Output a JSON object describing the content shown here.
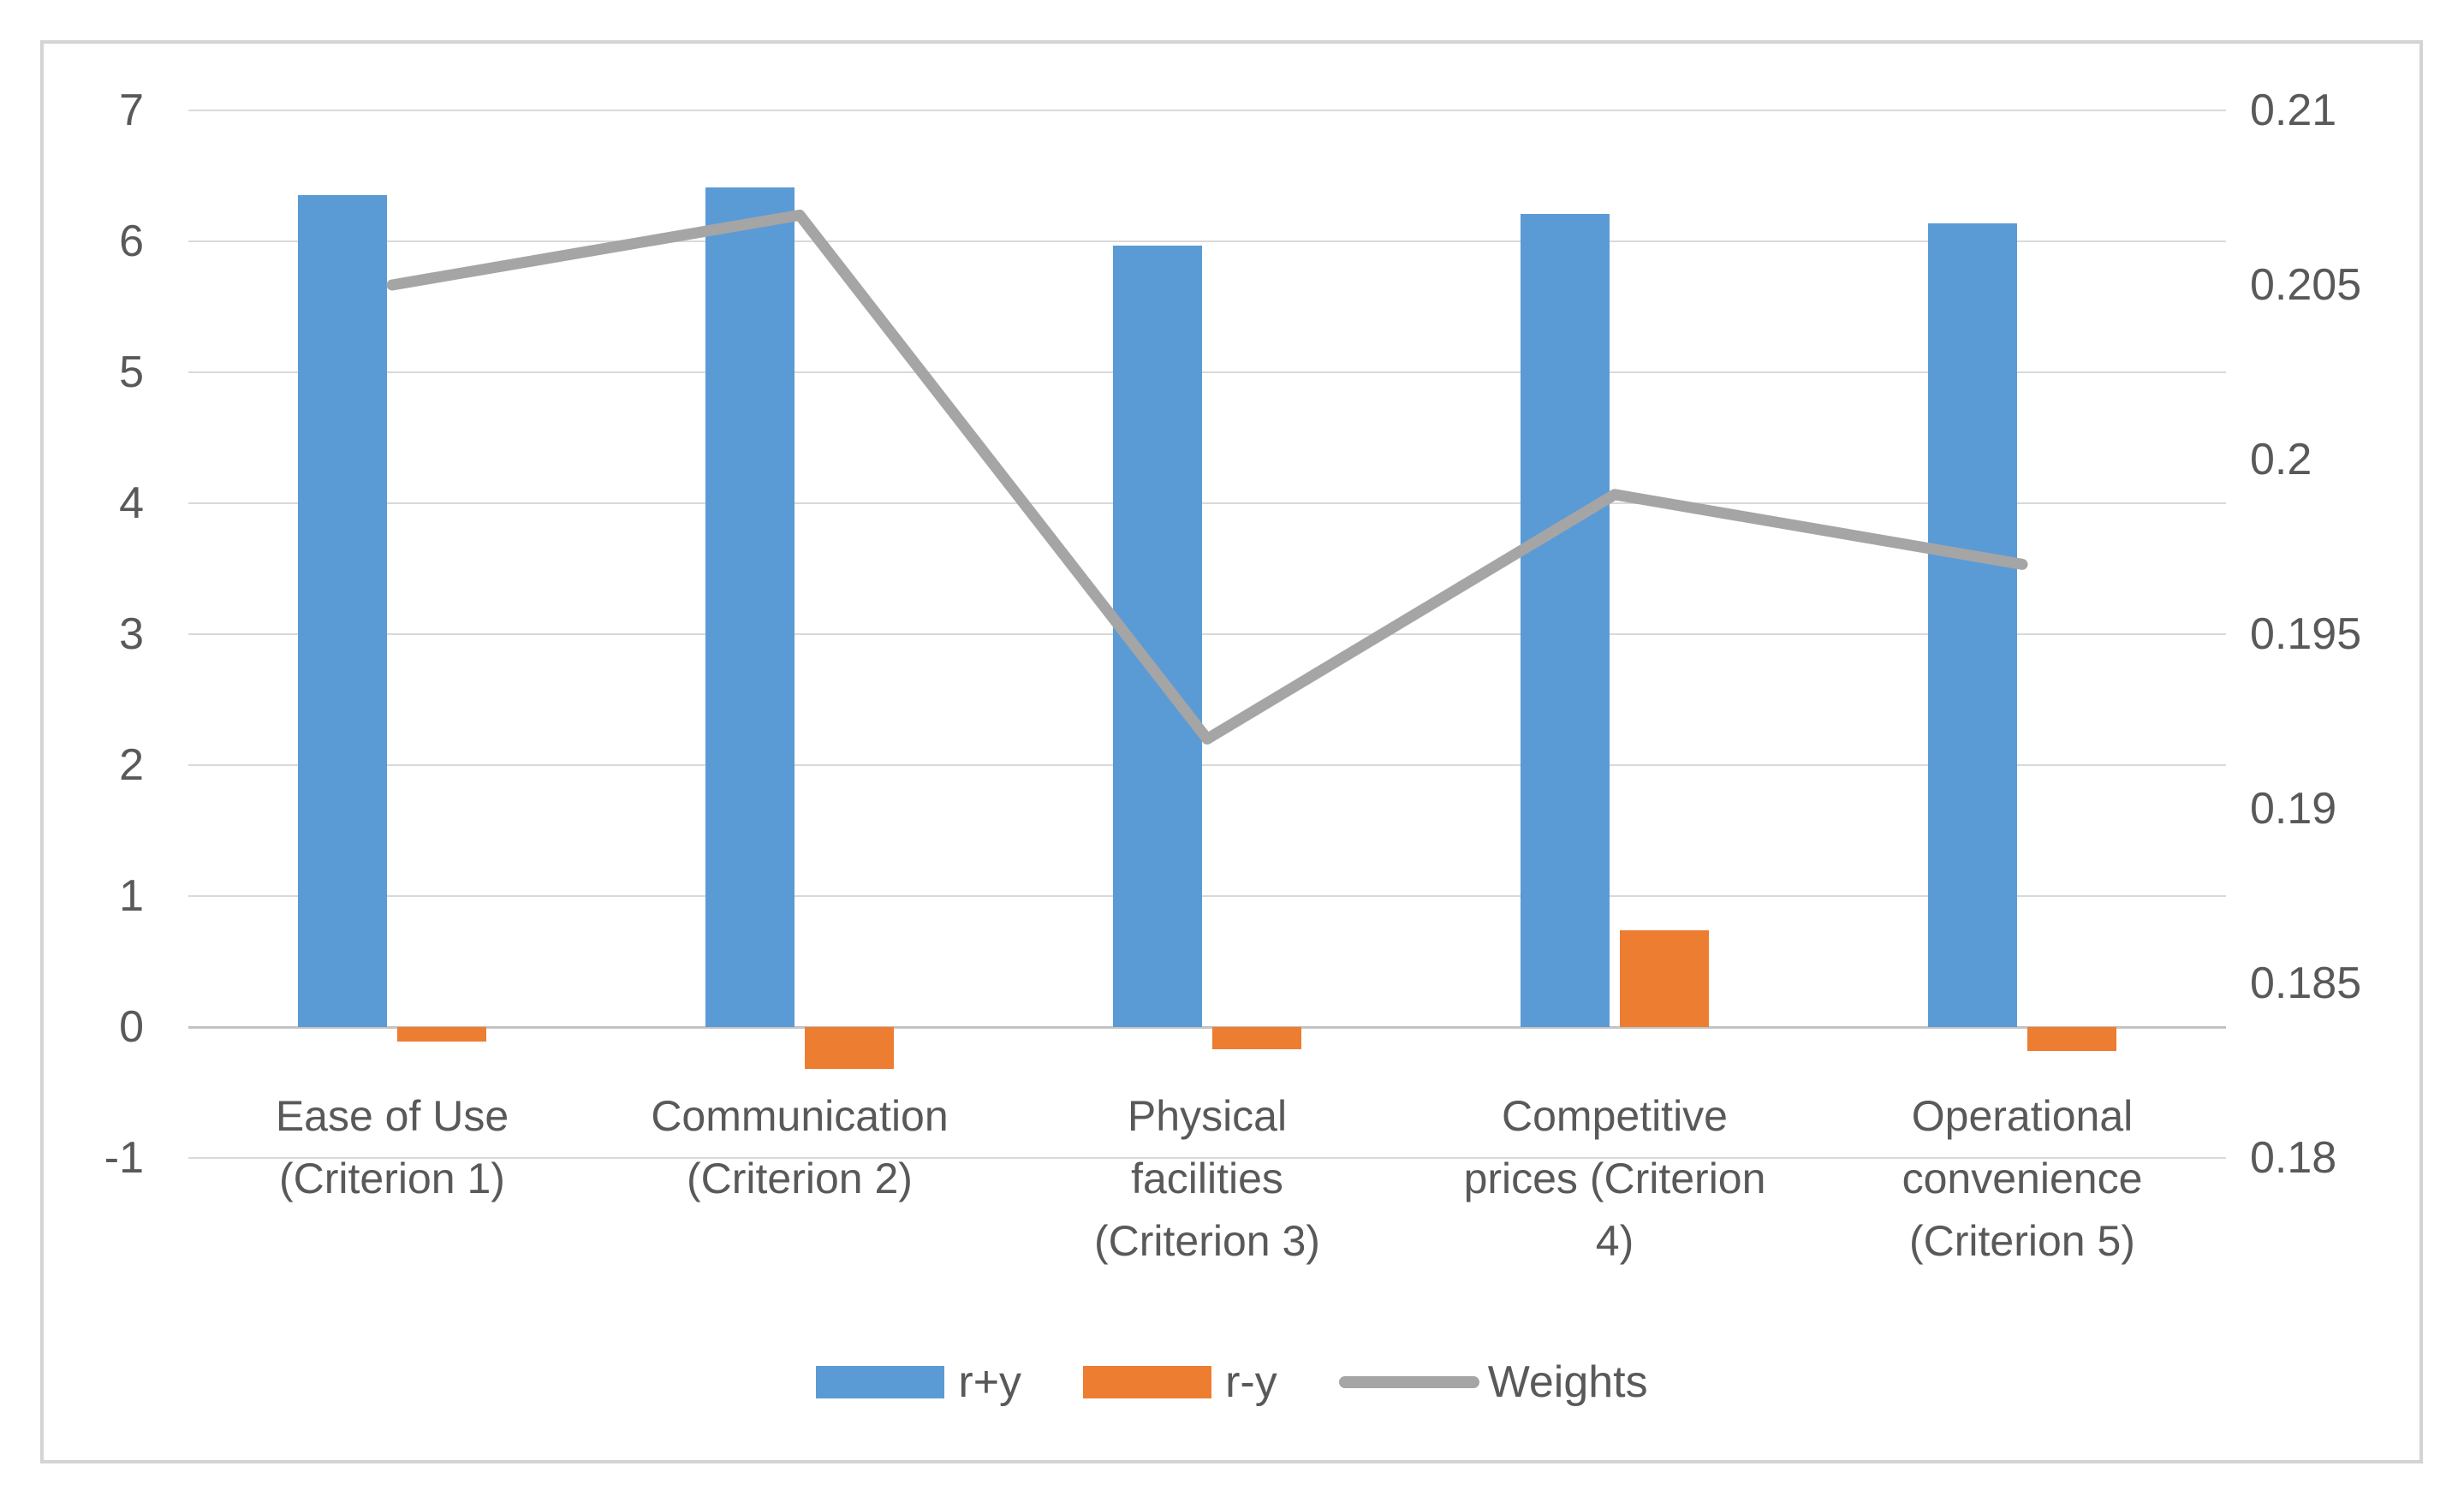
{
  "chart_data": {
    "type": "combo_bar_line",
    "title": "",
    "categories": [
      "Ease of Use (Criterion 1)",
      "Communication (Criterion 2)",
      "Physical facilities (Criterion 3)",
      "Competitive prices (Criterion 4)",
      "Operational convenience (Criterion 5)"
    ],
    "category_label_lines": [
      [
        "Ease of Use",
        "(Criterion 1)"
      ],
      [
        "Communication",
        "(Criterion 2)"
      ],
      [
        "Physical",
        "facilities",
        "(Criterion 3)"
      ],
      [
        "Competitive",
        "prices (Criterion",
        "4)"
      ],
      [
        "Operational",
        "convenience",
        "(Criterion 5)"
      ]
    ],
    "series": [
      {
        "name": "r+y",
        "type": "bar",
        "axis": "left",
        "color": "#5B9BD5",
        "values": [
          6.35,
          6.41,
          5.97,
          6.21,
          6.14
        ]
      },
      {
        "name": "r-y",
        "type": "bar",
        "axis": "left",
        "color": "#ED7D31",
        "values": [
          -0.11,
          -0.32,
          -0.17,
          0.74,
          -0.18
        ]
      },
      {
        "name": "Weights",
        "type": "line",
        "axis": "right",
        "color": "#A5A5A5",
        "values": [
          0.205,
          0.207,
          0.192,
          0.199,
          0.197
        ]
      }
    ],
    "left_axis": {
      "min": -1,
      "max": 7,
      "tick_labels": [
        "7",
        "6",
        "5",
        "4",
        "3",
        "2",
        "1",
        "0",
        "-1"
      ]
    },
    "right_axis": {
      "min": 0.18,
      "max": 0.21,
      "tick_labels": [
        "0.21",
        "0.205",
        "0.2",
        "0.195",
        "0.19",
        "0.185",
        "0.18"
      ]
    },
    "legend": {
      "position": "bottom",
      "entries": [
        "r+y",
        "r-y",
        "Weights"
      ]
    },
    "grid": true,
    "colors": {
      "bar_blue": "#5B9BD5",
      "bar_orange": "#ED7D31",
      "line_gray": "#A5A5A5",
      "gridline": "#D9D9D9",
      "zero_line": "#C3C3C3",
      "text": "#595959",
      "frame_border": "#D4D4D4",
      "background": "#FFFFFF"
    }
  }
}
